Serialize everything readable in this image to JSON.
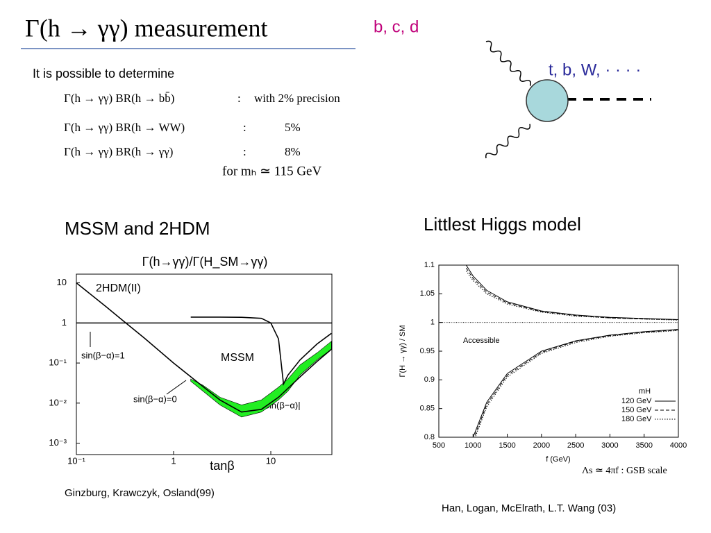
{
  "slide": {
    "title": "Γ(h → γγ)  measurement",
    "tag": "b, c, d",
    "intro": "It is possible to determine",
    "rows": [
      {
        "quantity": "Γ(h → γγ) BR(h → bb̄)",
        "sep": ":",
        "precision": "with 2% precision"
      },
      {
        "quantity": "Γ(h → γγ) BR(h → WW)",
        "sep": ":",
        "precision": "5%"
      },
      {
        "quantity": "Γ(h → γγ) BR(h → γγ)",
        "sep": ":",
        "precision": "8%"
      }
    ],
    "condition": "for mₕ ≃ 115 GeV",
    "diagram_label": "t, b, W, · · · ·",
    "left_heading": "MSSM and 2HDM",
    "right_heading": "Littlest Higgs model",
    "left_credit": "Ginzburg, Krawczyk, Osland(99)",
    "right_credit": "Han, Logan, McElrath, L.T. Wang (03)",
    "right_note": "Λs ≃ 4πf :  GSB scale"
  },
  "chart_data": [
    {
      "type": "line",
      "title": "Γ(h→γγ)/Γ(H_SM→γγ)",
      "x_label": "tanβ",
      "xscale": "log",
      "yscale": "log",
      "xlim": [
        0.1,
        42.5
      ],
      "ylim": [
        0.00052,
        16.5
      ],
      "xticks": [
        {
          "value": 0.1,
          "label": "10⁻¹"
        },
        1,
        10
      ],
      "yticks": [
        {
          "value": 0.001,
          "label": "10⁻³"
        },
        {
          "value": 0.01,
          "label": "10⁻²"
        },
        {
          "value": 0.1,
          "label": "10⁻¹"
        },
        1,
        10
      ],
      "reference_line": 1,
      "annotations": [
        "2HDM(II)",
        "MSSM",
        "sin(β−α)=1",
        "sin(β−α)=0",
        "|sin(β−α)|"
      ],
      "band": {
        "color": "#22ee22",
        "x": [
          1.5,
          2,
          3,
          5,
          8,
          12,
          15,
          20,
          30,
          42
        ],
        "upper": [
          0.04,
          0.028,
          0.014,
          0.009,
          0.012,
          0.025,
          0.04,
          0.09,
          0.18,
          0.35
        ],
        "lower": [
          0.035,
          0.02,
          0.009,
          0.0045,
          0.006,
          0.012,
          0.02,
          0.05,
          0.12,
          0.22
        ]
      },
      "series": [
        {
          "name": "2HDM(II)",
          "color": "#000000",
          "dash": "solid",
          "x": [
            0.1,
            0.2,
            0.3,
            0.5,
            1,
            2,
            3,
            5,
            8,
            12,
            20,
            30,
            42
          ],
          "values": [
            10,
            2.6,
            1.15,
            0.42,
            0.1,
            0.026,
            0.012,
            0.006,
            0.007,
            0.014,
            0.045,
            0.11,
            0.22
          ]
        },
        {
          "name": "MSSM",
          "color": "#000000",
          "dash": "solid",
          "x": [
            1.5,
            3,
            5,
            8,
            10,
            12,
            13.5,
            15,
            20,
            30,
            42
          ],
          "values": [
            1.4,
            1.4,
            1.38,
            1.3,
            1.0,
            0.4,
            0.03,
            0.05,
            0.12,
            0.3,
            0.55
          ]
        }
      ]
    },
    {
      "type": "line",
      "x_label": "f (GeV)",
      "y_label": "Γ(H → γγ) / SM",
      "xlim": [
        500,
        4000
      ],
      "ylim": [
        0.8,
        1.1
      ],
      "xticks": [
        500,
        1000,
        1500,
        2000,
        2500,
        3000,
        3500,
        4000
      ],
      "yticks": [
        0.8,
        0.85,
        0.9,
        0.95,
        1,
        1.05,
        1.1
      ],
      "reference_line": 1,
      "annotations": [
        "Accessible"
      ],
      "legend_title": "mH",
      "legend": "lower-right",
      "x": [
        900,
        1000,
        1200,
        1500,
        2000,
        2500,
        3000,
        3500,
        4000
      ],
      "series": [
        {
          "name": "120 GeV",
          "color": "#000000",
          "dash": "solid",
          "values_upper": [
            1.1,
            1.081,
            1.056,
            1.036,
            1.02,
            1.013,
            1.009,
            1.007,
            1.005
          ],
          "values_lower": [
            null,
            0.8,
            0.861,
            0.911,
            0.95,
            0.968,
            0.978,
            0.984,
            0.988
          ]
        },
        {
          "name": "150 GeV",
          "color": "#000000",
          "dash": "dashed",
          "values_upper": [
            1.095,
            1.077,
            1.053,
            1.034,
            1.019,
            1.012,
            1.008,
            1.006,
            1.005
          ],
          "values_lower": [
            null,
            0.795,
            0.857,
            0.908,
            0.948,
            0.967,
            0.977,
            0.983,
            0.987
          ]
        },
        {
          "name": "180 GeV",
          "color": "#000000",
          "dash": "dotted",
          "values_upper": [
            1.09,
            1.073,
            1.05,
            1.032,
            1.018,
            1.011,
            1.008,
            1.006,
            1.004
          ],
          "values_lower": [
            null,
            0.79,
            0.853,
            0.905,
            0.946,
            0.965,
            0.976,
            0.982,
            0.986
          ]
        }
      ]
    }
  ]
}
